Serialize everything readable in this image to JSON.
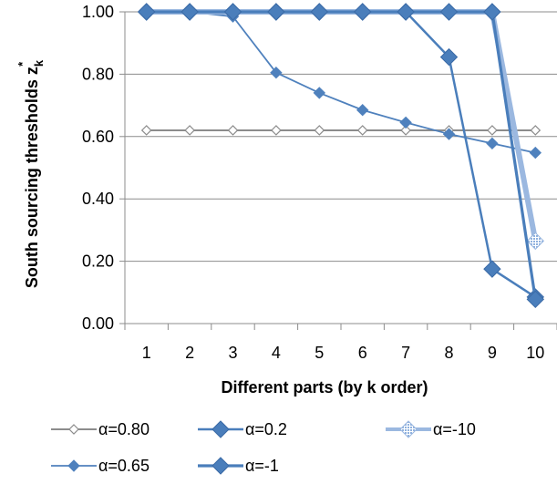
{
  "chart_data": {
    "type": "line",
    "title": "",
    "xlabel": "Different parts (by k order)",
    "ylabel": {
      "main": "South sourcing thresholds z",
      "subscript": "k",
      "superscript": "*"
    },
    "x": [
      1,
      2,
      3,
      4,
      5,
      6,
      7,
      8,
      9,
      10
    ],
    "ylim": [
      0,
      1
    ],
    "yticks": [
      "0.00",
      "0.20",
      "0.40",
      "0.60",
      "0.80",
      "1.00"
    ],
    "grid": true,
    "legend_position": "bottom",
    "series": [
      {
        "name": "α=0.80",
        "color": "#8c8c8c",
        "marker": "diamond-open",
        "values": [
          0.62,
          0.62,
          0.62,
          0.62,
          0.62,
          0.62,
          0.62,
          0.62,
          0.62,
          0.62
        ]
      },
      {
        "name": "α=0.2",
        "color": "#4a7ebb",
        "marker": "diamond",
        "values": [
          1.0,
          1.0,
          1.0,
          1.0,
          1.0,
          1.0,
          1.0,
          0.855,
          0.175,
          0.085
        ]
      },
      {
        "name": "α=-10",
        "color": "#9bb8e0",
        "marker": "diamond-hatched",
        "values": [
          1.0,
          1.0,
          1.0,
          1.0,
          1.0,
          1.0,
          1.0,
          1.0,
          1.0,
          0.265
        ]
      },
      {
        "name": "α=0.65",
        "color": "#4f81bd",
        "marker": "diamond",
        "values": [
          1.0,
          1.0,
          0.985,
          0.805,
          0.74,
          0.685,
          0.645,
          0.608,
          0.578,
          0.548
        ]
      },
      {
        "name": "α=-1",
        "color": "#4a7ebb",
        "marker": "diamond",
        "values": [
          1.0,
          1.0,
          1.0,
          1.0,
          1.0,
          1.0,
          1.0,
          1.0,
          1.0,
          0.078
        ]
      }
    ]
  }
}
